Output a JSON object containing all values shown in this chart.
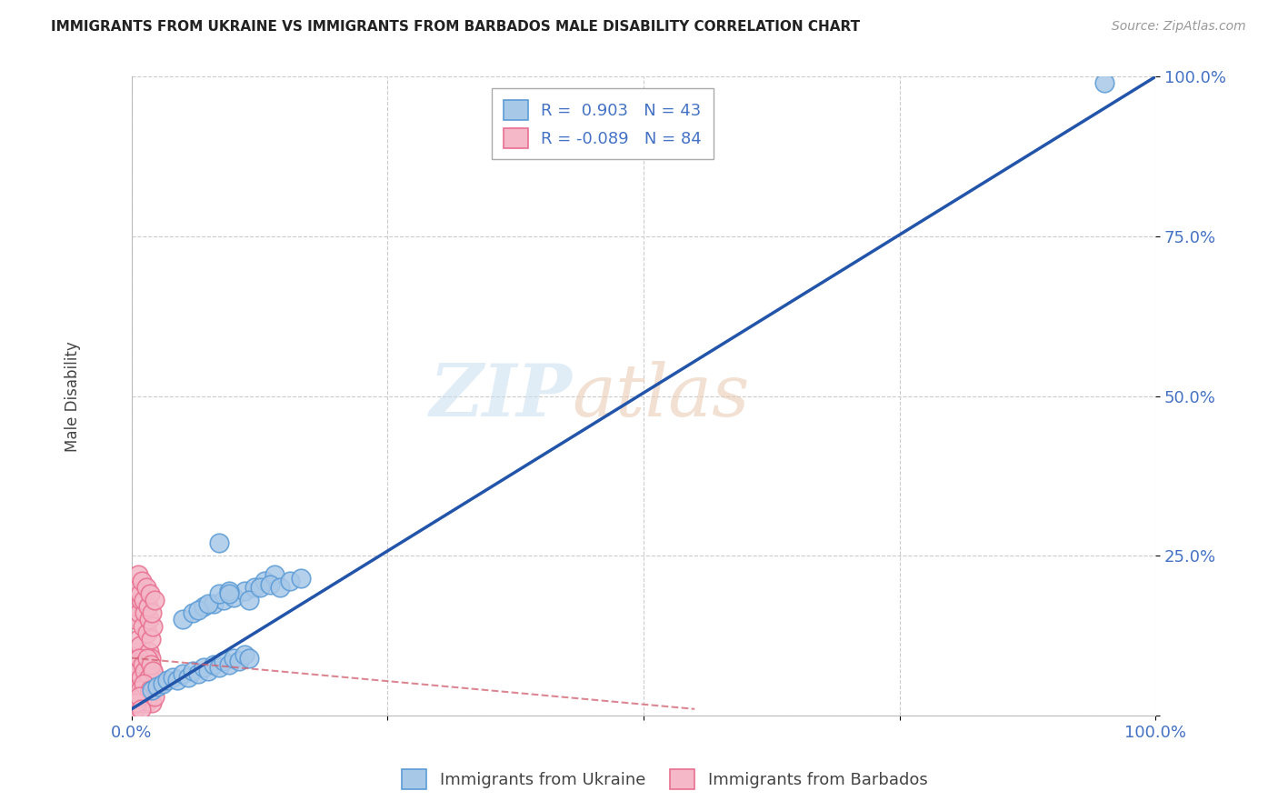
{
  "title": "IMMIGRANTS FROM UKRAINE VS IMMIGRANTS FROM BARBADOS MALE DISABILITY CORRELATION CHART",
  "source": "Source: ZipAtlas.com",
  "ylabel": "Male Disability",
  "xlabel": "",
  "xlim": [
    0,
    1
  ],
  "ylim": [
    0,
    1
  ],
  "xticks": [
    0.0,
    0.25,
    0.5,
    0.75,
    1.0
  ],
  "yticks": [
    0.0,
    0.25,
    0.5,
    0.75,
    1.0
  ],
  "xticklabels": [
    "0.0%",
    "",
    "",
    "",
    "100.0%"
  ],
  "yticklabels": [
    "",
    "25.0%",
    "50.0%",
    "75.0%",
    "100.0%"
  ],
  "ukraine_color": "#a8c8e8",
  "ukraine_edge": "#5b9bd5",
  "barbados_color": "#f4b8c8",
  "barbados_edge": "#e87090",
  "ukraine_R": 0.903,
  "ukraine_N": 43,
  "barbados_R": -0.089,
  "barbados_N": 84,
  "trendline_ukraine_color": "#2255aa",
  "trendline_barbados_color": "#d06070",
  "legend_text_color": "#4472c4",
  "watermark_line1": "ZIP",
  "watermark_line2": "atlas",
  "background_color": "#ffffff",
  "grid_color": "#cccccc",
  "ukraine_x": [
    0.02,
    0.025,
    0.03,
    0.035,
    0.04,
    0.045,
    0.05,
    0.055,
    0.06,
    0.065,
    0.07,
    0.075,
    0.08,
    0.085,
    0.09,
    0.095,
    0.1,
    0.105,
    0.11,
    0.115,
    0.05,
    0.06,
    0.07,
    0.08,
    0.09,
    0.1,
    0.11,
    0.12,
    0.13,
    0.14,
    0.065,
    0.075,
    0.085,
    0.095,
    0.115,
    0.125,
    0.135,
    0.145,
    0.155,
    0.165,
    0.085,
    0.095,
    0.95
  ],
  "ukraine_y": [
    0.04,
    0.045,
    0.05,
    0.055,
    0.06,
    0.055,
    0.065,
    0.06,
    0.07,
    0.065,
    0.075,
    0.07,
    0.08,
    0.075,
    0.085,
    0.08,
    0.09,
    0.085,
    0.095,
    0.09,
    0.15,
    0.16,
    0.17,
    0.175,
    0.18,
    0.185,
    0.195,
    0.2,
    0.21,
    0.22,
    0.165,
    0.175,
    0.19,
    0.195,
    0.18,
    0.2,
    0.205,
    0.2,
    0.21,
    0.215,
    0.27,
    0.19,
    0.99
  ],
  "barbados_x": [
    0.002,
    0.003,
    0.004,
    0.005,
    0.006,
    0.007,
    0.008,
    0.009,
    0.01,
    0.011,
    0.012,
    0.013,
    0.014,
    0.015,
    0.016,
    0.017,
    0.018,
    0.019,
    0.02,
    0.021,
    0.003,
    0.005,
    0.007,
    0.009,
    0.011,
    0.013,
    0.015,
    0.017,
    0.019,
    0.021,
    0.004,
    0.006,
    0.008,
    0.01,
    0.012,
    0.014,
    0.016,
    0.018,
    0.02,
    0.022,
    0.003,
    0.005,
    0.007,
    0.009,
    0.011,
    0.013,
    0.015,
    0.017,
    0.019,
    0.021,
    0.002,
    0.004,
    0.006,
    0.008,
    0.01,
    0.012,
    0.014,
    0.016,
    0.018,
    0.02,
    0.003,
    0.005,
    0.007,
    0.009,
    0.011,
    0.013,
    0.015,
    0.017,
    0.019,
    0.021,
    0.004,
    0.006,
    0.008,
    0.01,
    0.012,
    0.014,
    0.016,
    0.018,
    0.02,
    0.022,
    0.003,
    0.005,
    0.007,
    0.009
  ],
  "barbados_y": [
    0.04,
    0.06,
    0.08,
    0.1,
    0.12,
    0.09,
    0.11,
    0.07,
    0.08,
    0.06,
    0.09,
    0.07,
    0.05,
    0.08,
    0.06,
    0.1,
    0.07,
    0.09,
    0.05,
    0.07,
    0.15,
    0.17,
    0.16,
    0.18,
    0.14,
    0.16,
    0.13,
    0.15,
    0.12,
    0.14,
    0.2,
    0.22,
    0.19,
    0.21,
    0.18,
    0.2,
    0.17,
    0.19,
    0.16,
    0.18,
    0.05,
    0.04,
    0.06,
    0.03,
    0.05,
    0.04,
    0.06,
    0.03,
    0.05,
    0.04,
    0.02,
    0.03,
    0.04,
    0.05,
    0.06,
    0.04,
    0.05,
    0.03,
    0.04,
    0.05,
    0.08,
    0.07,
    0.09,
    0.06,
    0.08,
    0.07,
    0.09,
    0.06,
    0.08,
    0.07,
    0.03,
    0.02,
    0.04,
    0.03,
    0.05,
    0.02,
    0.03,
    0.04,
    0.02,
    0.03,
    0.01,
    0.02,
    0.03,
    0.01
  ]
}
